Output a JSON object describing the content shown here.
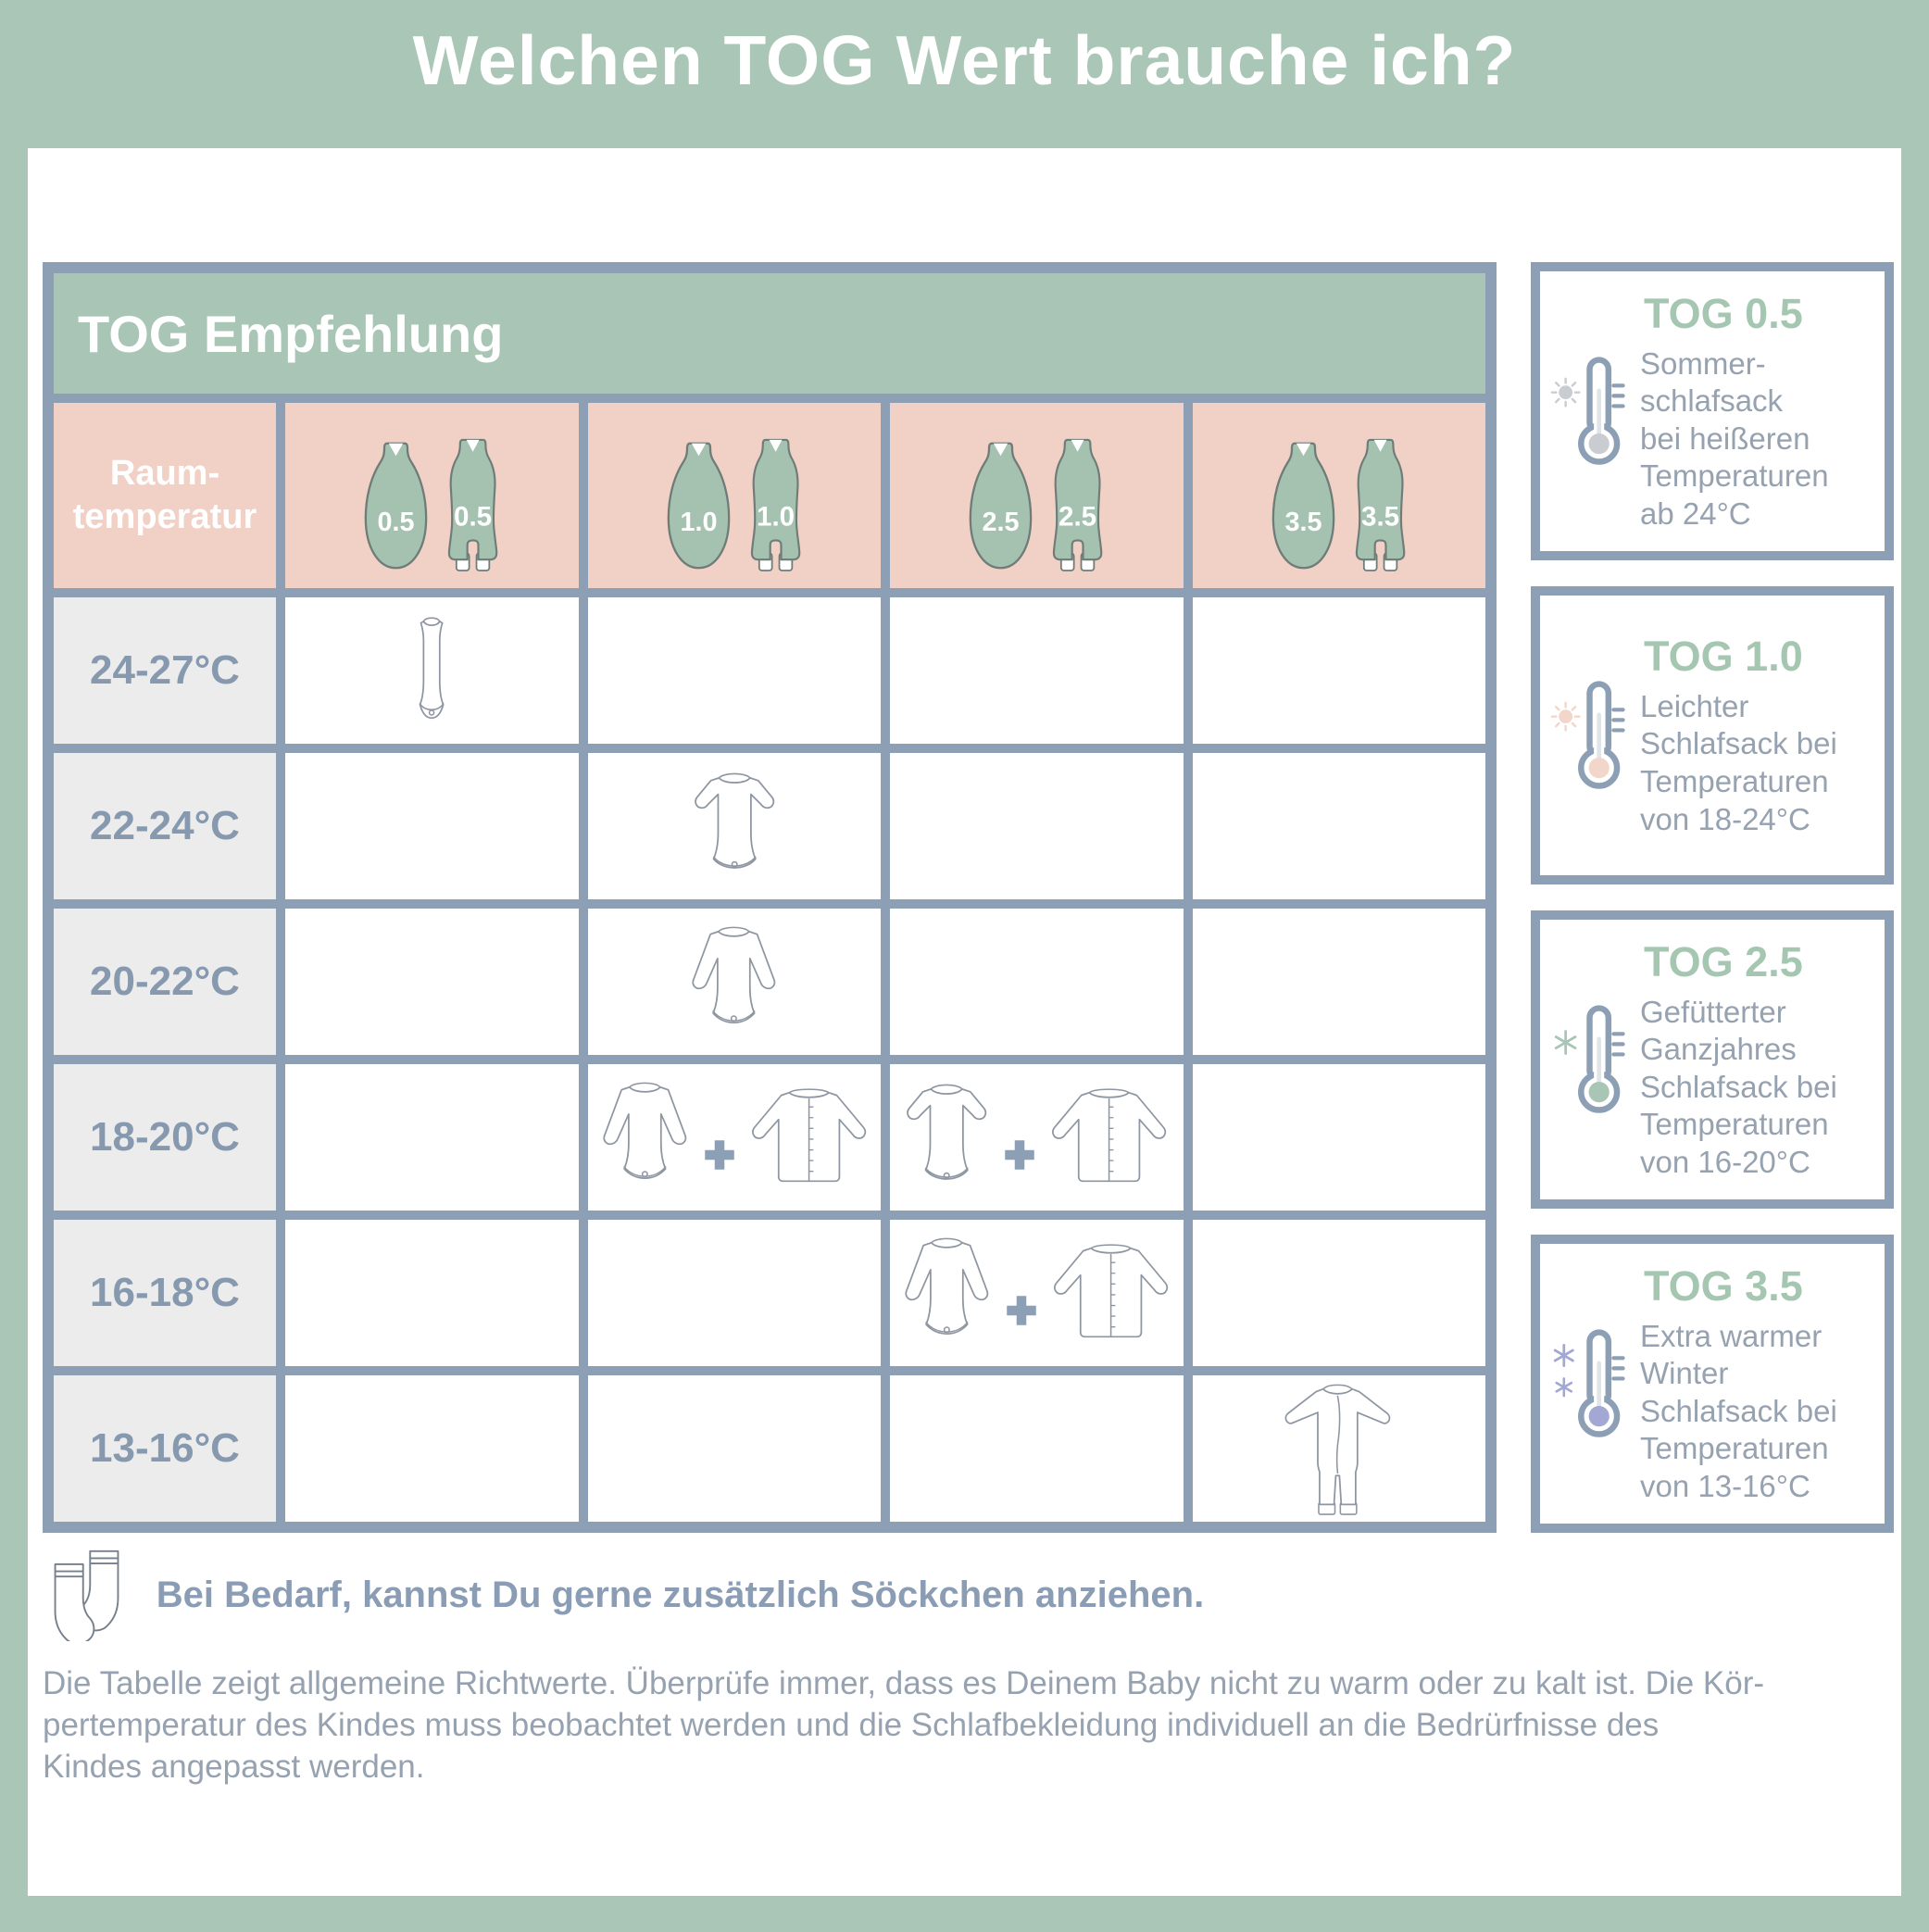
{
  "header": {
    "title": "Welchen TOG Wert brauche ich?"
  },
  "table": {
    "title": "TOG Empfehlung",
    "corner_label": "Raum-\ntemperatur",
    "columns": [
      {
        "tog": "0.5",
        "icons": [
          "sleeping-bag-icon",
          "sleeping-bag-with-legs-icon"
        ]
      },
      {
        "tog": "1.0",
        "icons": [
          "sleeping-bag-icon",
          "sleeping-bag-with-legs-icon"
        ]
      },
      {
        "tog": "2.5",
        "icons": [
          "sleeping-bag-icon",
          "sleeping-bag-with-legs-icon"
        ]
      },
      {
        "tog": "3.5",
        "icons": [
          "sleeping-bag-icon",
          "sleeping-bag-with-legs-icon"
        ]
      }
    ],
    "rows": [
      {
        "temp": "24-27°C",
        "cells": [
          [
            "bodysuit-sleeveless"
          ],
          [],
          [],
          []
        ]
      },
      {
        "temp": "22-24°C",
        "cells": [
          [],
          [
            "bodysuit-shortsleeve"
          ],
          [],
          []
        ]
      },
      {
        "temp": "20-22°C",
        "cells": [
          [],
          [
            "bodysuit-longsleeve"
          ],
          [],
          []
        ]
      },
      {
        "temp": "18-20°C",
        "cells": [
          [],
          [
            "bodysuit-longsleeve",
            "plus",
            "cardigan"
          ],
          [
            "bodysuit-shortsleeve",
            "plus",
            "cardigan"
          ],
          []
        ]
      },
      {
        "temp": "16-18°C",
        "cells": [
          [],
          [],
          [
            "bodysuit-longsleeve",
            "plus",
            "cardigan"
          ],
          []
        ]
      },
      {
        "temp": "13-16°C",
        "cells": [
          [],
          [],
          [],
          [
            "sleepsuit"
          ]
        ]
      }
    ]
  },
  "sidebar": [
    {
      "title": "TOG 0.5",
      "description": "Sommer-\nschlafsack\nbei heißeren\nTemperaturen\nab 24°C",
      "icon": "thermometer-sun-icon",
      "accent": "#C9CCD0",
      "snowflakes": 0
    },
    {
      "title": "TOG 1.0",
      "description": "Leichter\nSchlafsack bei\nTemperaturen\nvon 18-24°C",
      "icon": "thermometer-sun-icon",
      "accent": "#F2D6CA",
      "snowflakes": 0
    },
    {
      "title": "TOG 2.5",
      "description": "Gefütterter\nGanzjahres\nSchlafsack bei\nTemperaturen\nvon 16-20°C",
      "icon": "thermometer-snowflake-icon",
      "accent": "#A9C5B6",
      "snowflakes": 1
    },
    {
      "title": "TOG 3.5",
      "description": "Extra warmer\nWinter\nSchlafsack bei\nTemperaturen\nvon 13-16°C",
      "icon": "thermometer-snowflake-icon",
      "accent": "#A2A7D3",
      "snowflakes": 2
    }
  ],
  "note": {
    "icon": "socks-icon",
    "text": "Bei Bedarf, kannst Du gerne zusätzlich Söckchen anziehen."
  },
  "disclaimer": "Die Tabelle zeigt allgemeine Richtwerte. Überprüfe immer, dass es Deinem Baby nicht zu warm oder zu kalt ist. Die Kör-\npertemperatur des Kindes muss beobachtet werden und die Schlafbekleidung individuell an die Bedrürfnisse des\nKindes angepasst werden.",
  "colors": {
    "background_green": "#AAC6B7",
    "header_green": "#A9C5B6",
    "bag_green": "#A5C2B1",
    "pink": "#F1D1C5",
    "grid_border": "#8C9FB4",
    "row_label_bg": "#ECECEC",
    "temp_text": "#8699AF",
    "sidebar_title_green": "#A5C7B2",
    "body_text": "#97A2B0",
    "note_text": "#8A9DB4",
    "bag_outline": "#6F7C78",
    "garment_outline": "#8E96A2",
    "accent_gray": "#C9CCD0",
    "accent_pink": "#F2D6CA",
    "accent_green": "#A9C5B6",
    "accent_purple": "#A2A7D3"
  }
}
